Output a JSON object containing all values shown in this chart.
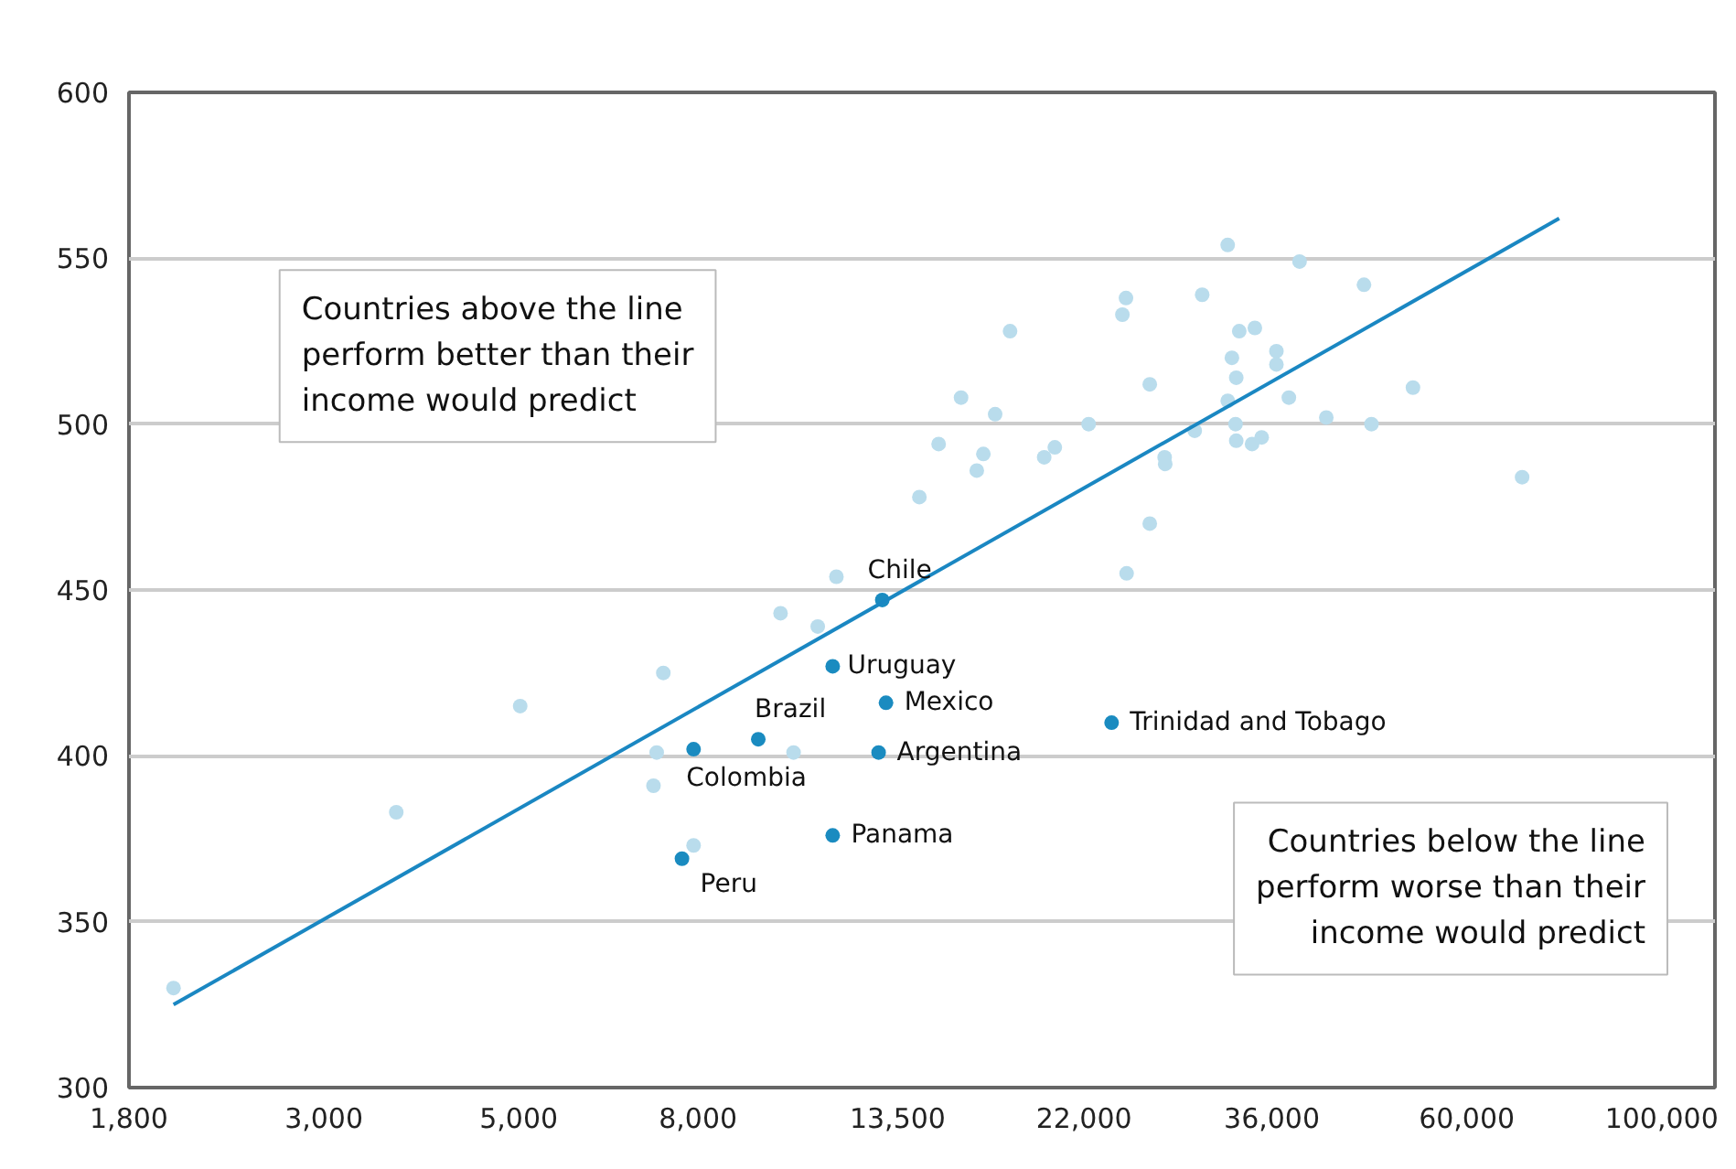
{
  "chart_data": {
    "type": "scatter",
    "log": "x",
    "xlim": [
      1800,
      115000
    ],
    "ylim": [
      300,
      600
    ],
    "xticks": [
      {
        "value": 1800,
        "label": "1,800"
      },
      {
        "value": 3000,
        "label": "3,000"
      },
      {
        "value": 5000,
        "label": "5,000"
      },
      {
        "value": 8000,
        "label": "8,000"
      },
      {
        "value": 13500,
        "label": "13,500"
      },
      {
        "value": 22000,
        "label": "22,000"
      },
      {
        "value": 36000,
        "label": "36,000"
      },
      {
        "value": 60000,
        "label": "60,000"
      },
      {
        "value": 100000,
        "label": "100,000"
      }
    ],
    "yticks": [
      300,
      350,
      400,
      450,
      500,
      550,
      600
    ],
    "grid": "y",
    "series": [
      {
        "color": "#b9dcec",
        "marker": "circle",
        "x": [
          2023,
          3627,
          5019,
          7304,
          7178,
          7118,
          7907,
          10276,
          9931,
          10948,
          11497,
          32063,
          38710,
          45830,
          24560,
          24330,
          29990,
          18125,
          33050,
          34430,
          32420,
          36430,
          32790,
          36430,
          26140,
          15940,
          17430,
          52110,
          37640,
          32070,
          41520,
          46740,
          22270,
          29410,
          32730,
          32790,
          35050,
          34180,
          15030,
          16900,
          20380,
          19820,
          27180,
          27220,
          16610,
          69370,
          14290,
          26140,
          24600
        ],
        "values": [
          330,
          383,
          415,
          425,
          401,
          391,
          373,
          401,
          443,
          439,
          454,
          554,
          549,
          542,
          538,
          533,
          539,
          528,
          528,
          529,
          520,
          522,
          514,
          518,
          512,
          508,
          503,
          511,
          508,
          507,
          502,
          500,
          500,
          498,
          500,
          495,
          496,
          494,
          494,
          491,
          493,
          490,
          490,
          488,
          486,
          484,
          478,
          470,
          455
        ]
      },
      {
        "color": "#1a8bc0",
        "marker": "circle",
        "x": [
          12966,
          11386,
          9368,
          13093,
          7907,
          12842,
          23652,
          11386,
          7670
        ],
        "values": [
          447,
          427,
          405,
          416,
          402,
          401,
          410,
          376,
          369
        ]
      },
      {
        "type": "line",
        "color": "#1a87c2",
        "x": [
          2023,
          76450
        ],
        "values": [
          325,
          562
        ]
      }
    ],
    "annotations": [
      "Countries above the line perform better than their income would predict",
      "Countries below the line perform worse than their income would predict",
      {
        "text": "Chile",
        "x": 12966,
        "y": 447
      },
      {
        "text": "Uruguay",
        "x": 11386,
        "y": 427
      },
      {
        "text": "Brazil",
        "x": 9368,
        "y": 405
      },
      {
        "text": "Mexico",
        "x": 13093,
        "y": 416
      },
      {
        "text": "Colombia",
        "x": 7907,
        "y": 402
      },
      {
        "text": "Argentina",
        "x": 12842,
        "y": 401
      },
      {
        "text": "Trinidad and Tobago",
        "x": 23652,
        "y": 410
      },
      {
        "text": "Panama",
        "x": 11386,
        "y": 376
      },
      {
        "text": "Peru",
        "x": 7670,
        "y": 369
      }
    ]
  }
}
